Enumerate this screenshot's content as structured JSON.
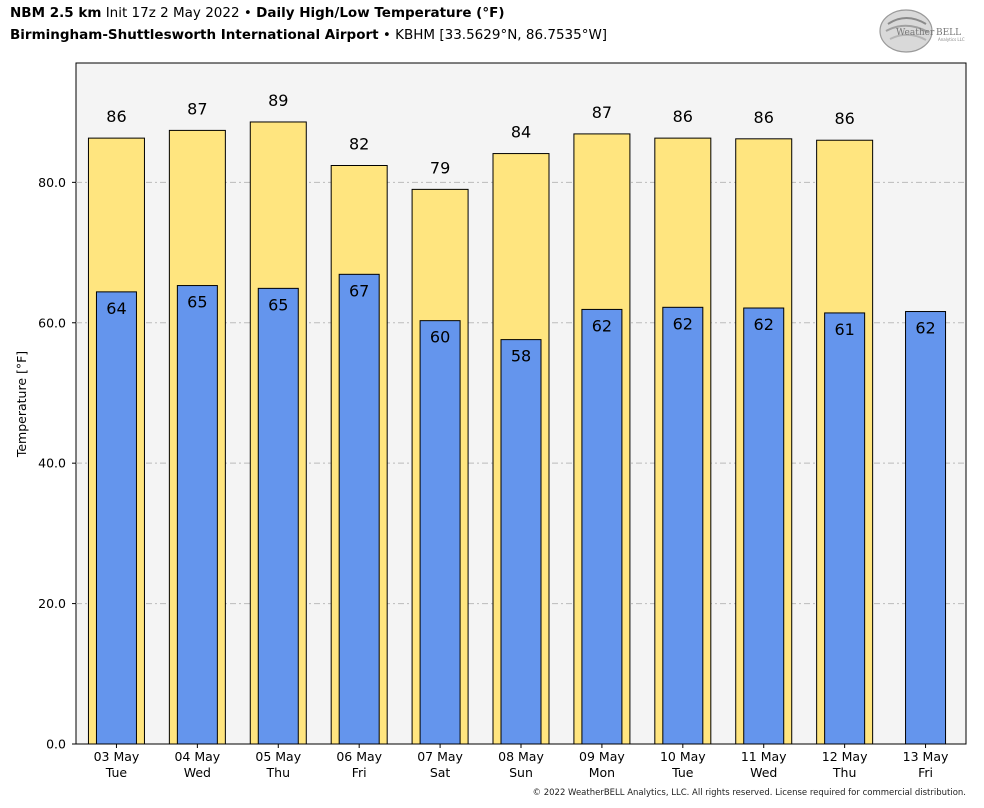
{
  "header": {
    "model": "NBM 2.5 km",
    "init": "Init 17z 2 May 2022",
    "sep": "•",
    "title": "Daily High/Low Temperature (°F)",
    "station_name": "Birmingham-Shuttlesworth International Airport",
    "station_info": "KBHM [33.5629°N, 86.7535°W]"
  },
  "logo": {
    "icon": "weatherbell-logo",
    "text_a": "Weather",
    "text_b": "BELL",
    "sub": "Analytics LLC"
  },
  "footer": {
    "copyright": "© 2022 WeatherBELL Analytics, LLC. All rights reserved. License required for commercial distribution."
  },
  "colors": {
    "high": "#FFE57F",
    "low": "#6495ED",
    "plot_bg": "#F4F4F4",
    "grid": "#BBBBBB"
  },
  "chart_data": {
    "type": "bar",
    "ylabel": "Temperature [°F]",
    "ylim": [
      0,
      97
    ],
    "yticks": [
      "0.0",
      "20.0",
      "40.0",
      "60.0",
      "80.0"
    ],
    "ytick_values": [
      0,
      20,
      40,
      60,
      80
    ],
    "grid": true,
    "categories": [
      [
        "03 May",
        "Tue"
      ],
      [
        "04 May",
        "Wed"
      ],
      [
        "05 May",
        "Thu"
      ],
      [
        "06 May",
        "Fri"
      ],
      [
        "07 May",
        "Sat"
      ],
      [
        "08 May",
        "Sun"
      ],
      [
        "09 May",
        "Mon"
      ],
      [
        "10 May",
        "Tue"
      ],
      [
        "11 May",
        "Wed"
      ],
      [
        "12 May",
        "Thu"
      ],
      [
        "13 May",
        "Fri"
      ]
    ],
    "series": [
      {
        "key": "high",
        "values": [
          86.3,
          87.4,
          88.6,
          82.4,
          79.0,
          84.1,
          86.9,
          86.3,
          86.2,
          86.0,
          null
        ],
        "labels": [
          "86",
          "87",
          "89",
          "82",
          "79",
          "84",
          "87",
          "86",
          "86",
          "86",
          ""
        ]
      },
      {
        "key": "low",
        "values": [
          64.4,
          65.3,
          64.9,
          66.9,
          60.3,
          57.6,
          61.9,
          62.2,
          62.1,
          61.4,
          61.6
        ],
        "labels": [
          "64",
          "65",
          "65",
          "67",
          "60",
          "58",
          "62",
          "62",
          "62",
          "61",
          "62"
        ]
      }
    ]
  }
}
